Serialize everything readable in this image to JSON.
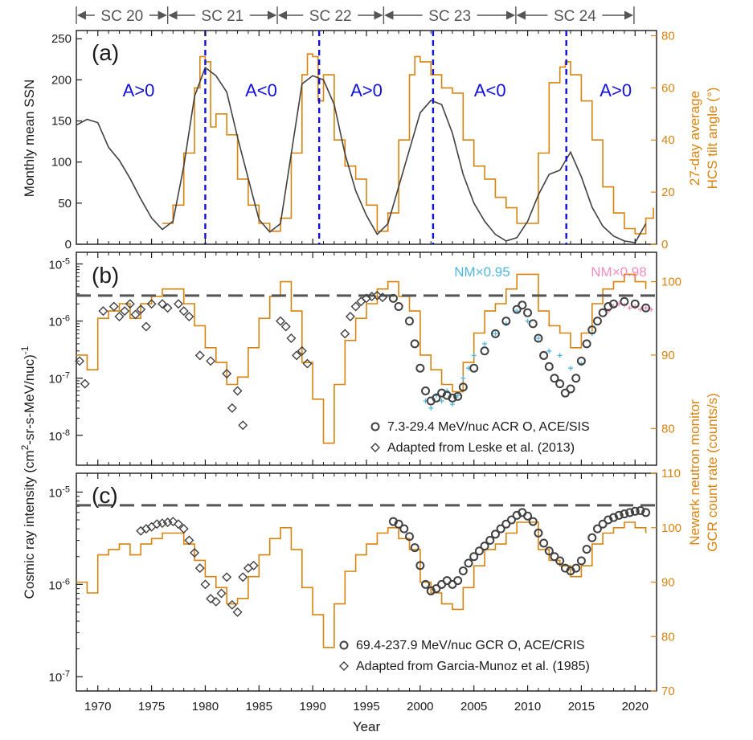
{
  "colors": {
    "axis": "#1a1a1a",
    "ssn": "#404040",
    "tilt": "#d9830f",
    "nm": "#d9830f",
    "polarity": "#1010d8",
    "dashed_ref": "#555555",
    "ace": "#404040",
    "nm_scaled_2000": "#4fb6e0",
    "nm_scaled_2017": "#f58cbf"
  },
  "header": {
    "cycles": [
      {
        "label": "SC 20",
        "start": 1968.0,
        "end": 1976.5
      },
      {
        "label": "SC 21",
        "start": 1976.5,
        "end": 1986.7
      },
      {
        "label": "SC 22",
        "start": 1986.7,
        "end": 1996.6
      },
      {
        "label": "SC 23",
        "start": 1996.6,
        "end": 2008.9
      },
      {
        "label": "SC 24",
        "start": 2008.9,
        "end": 2019.9
      }
    ]
  },
  "xaxis": {
    "label": "Year",
    "range": [
      1968,
      2022
    ],
    "ticks": [
      "1970",
      "1975",
      "1980",
      "1985",
      "1990",
      "1995",
      "2000",
      "2005",
      "2010",
      "2015",
      "2020"
    ]
  },
  "shared_labels": {
    "left": "Cosmic ray intensity (cm",
    "left_sup1": "2",
    "left_mid": "-sr-s-MeV/nuc)",
    "left_sup2": "-1",
    "right_line1": "Newark neutron monitor",
    "right_line2": "GCR count rate (counts/s)"
  },
  "chart_data": [
    {
      "panel": "(a)",
      "type": "line",
      "ylabel": "Monthly mean SSN",
      "ylim": [
        0,
        260
      ],
      "yticks": [
        "0",
        "50",
        "100",
        "150",
        "200",
        "250"
      ],
      "y2label_line1": "27-day average",
      "y2label_line2": "HCS tilt angle (°)",
      "y2lim": [
        0,
        82
      ],
      "y2ticks": [
        "0",
        "20",
        "40",
        "60",
        "80"
      ],
      "polarity_reversals": [
        1980.0,
        1990.6,
        2001.2,
        2013.6
      ],
      "polarity_labels": [
        {
          "text": "A>0",
          "x": 1973.8
        },
        {
          "text": "A<0",
          "x": 1985.2
        },
        {
          "text": "A>0",
          "x": 1995.0
        },
        {
          "text": "A<0",
          "x": 2006.5
        },
        {
          "text": "A>0",
          "x": 2018.2
        }
      ],
      "series": [
        {
          "role": "ssn",
          "x": [
            1968,
            1969,
            1970,
            1971,
            1972,
            1973,
            1974,
            1975,
            1976,
            1977,
            1978,
            1979,
            1980,
            1981,
            1982,
            1983,
            1984,
            1985,
            1986,
            1987,
            1988,
            1989,
            1990,
            1991,
            1992,
            1993,
            1994,
            1995,
            1996,
            1997,
            1998,
            1999,
            2000,
            2001,
            2002,
            2003,
            2004,
            2005,
            2006,
            2007,
            2008,
            2009,
            2010,
            2011,
            2012,
            2013,
            2014,
            2015,
            2016,
            2017,
            2018,
            2019,
            2020,
            2021
          ],
          "values": [
            145,
            152,
            148,
            118,
            102,
            80,
            55,
            32,
            18,
            28,
            95,
            180,
            215,
            205,
            185,
            130,
            80,
            30,
            15,
            25,
            110,
            195,
            205,
            200,
            170,
            110,
            65,
            35,
            12,
            25,
            70,
            115,
            160,
            175,
            170,
            135,
            85,
            50,
            28,
            12,
            4,
            8,
            28,
            60,
            85,
            90,
            112,
            82,
            45,
            22,
            10,
            4,
            2,
            25
          ]
        },
        {
          "role": "tilt",
          "x": [
            1976,
            1977,
            1978,
            1979,
            1979.5,
            1980,
            1980.5,
            1981,
            1982,
            1983,
            1984,
            1985,
            1986,
            1987,
            1988,
            1989,
            1989.5,
            1990,
            1990.5,
            1991,
            1992,
            1993,
            1994,
            1995,
            1996,
            1997,
            1998,
            1999,
            1999.5,
            2000,
            2001,
            2002,
            2003,
            2004,
            2005,
            2006,
            2007,
            2008,
            2009,
            2010,
            2011,
            2012,
            2013,
            2013.5,
            2014,
            2015,
            2016,
            2017,
            2018,
            2019,
            2020,
            2021,
            2021.7
          ],
          "values": [
            8,
            15,
            35,
            60,
            72,
            70,
            45,
            50,
            42,
            25,
            15,
            8,
            5,
            10,
            35,
            65,
            73,
            72,
            55,
            65,
            40,
            30,
            25,
            15,
            5,
            12,
            40,
            65,
            72,
            70,
            65,
            60,
            58,
            40,
            30,
            25,
            18,
            14,
            8,
            8,
            35,
            62,
            68,
            70,
            65,
            55,
            40,
            22,
            12,
            6,
            4,
            10,
            14
          ]
        }
      ]
    },
    {
      "panel": "(b)",
      "type": "line",
      "ylog": true,
      "ylim": [
        3e-09,
        1.6e-05
      ],
      "yticks": [
        {
          "base": "10",
          "exp": "-5",
          "value": 1e-05
        },
        {
          "base": "10",
          "exp": "-6",
          "value": 1e-06
        },
        {
          "base": "10",
          "exp": "-7",
          "value": 1e-07
        },
        {
          "base": "10",
          "exp": "-8",
          "value": 1e-08
        }
      ],
      "y2lim": [
        75,
        104
      ],
      "y2ticks": [
        "80",
        "90",
        "100"
      ],
      "reference_level": 2.8e-06,
      "labels": {
        "nm95": "NM×0.95",
        "nm98": "NM×0.98"
      },
      "legend": [
        {
          "marker": "circle",
          "label": "7.3-29.4 MeV/nuc ACR O, ACE/SIS"
        },
        {
          "marker": "diamond",
          "label": "Adapted from Leske et al. (2013)"
        }
      ],
      "series": [
        {
          "role": "nm",
          "x": [
            1968,
            1969,
            1970,
            1971,
            1972,
            1973,
            1974,
            1975,
            1976,
            1977,
            1978,
            1979,
            1980,
            1981,
            1982,
            1983,
            1984,
            1985,
            1986,
            1987,
            1988,
            1989,
            1990,
            1991,
            1992,
            1993,
            1994,
            1995,
            1996,
            1997,
            1998,
            1999,
            2000,
            2001,
            2002,
            2003,
            2004,
            2005,
            2006,
            2007,
            2008,
            2009,
            2010,
            2011,
            2012,
            2013,
            2014,
            2015,
            2016,
            2017,
            2018,
            2019,
            2020,
            2021
          ],
          "values": [
            90,
            88,
            95,
            96,
            97,
            95,
            97,
            98,
            99,
            99,
            97,
            94,
            91,
            89,
            86,
            87,
            91,
            95,
            98,
            100,
            96,
            89,
            84,
            78,
            86,
            92,
            95,
            97,
            99,
            100,
            98,
            96,
            90,
            88,
            86,
            85,
            89,
            93,
            96,
            97,
            99,
            101,
            101,
            96,
            94,
            93,
            91,
            93,
            97,
            99,
            100,
            101,
            100,
            99
          ]
        },
        {
          "role": "ace",
          "x": [
            1997.5,
            1998,
            1999,
            1999.5,
            2000,
            2000.5,
            2001,
            2001.5,
            2002,
            2002.5,
            2003,
            2003.5,
            2004,
            2005,
            2006,
            2007,
            2008,
            2009,
            2009.5,
            2010,
            2010.5,
            2011,
            2011.5,
            2012,
            2012.5,
            2013,
            2013.5,
            2014,
            2014.5,
            2015,
            2015.5,
            2016,
            2016.5,
            2017,
            2017.5,
            2018,
            2019,
            2020,
            2021
          ],
          "values": [
            2.5e-06,
            1.8e-06,
            1e-06,
            4e-07,
            1.5e-07,
            6e-08,
            4e-08,
            4.5e-08,
            5.5e-08,
            5e-08,
            4.5e-08,
            4.8e-08,
            7e-08,
            1.5e-07,
            3e-07,
            6e-07,
            1e-06,
            1.6e-06,
            1.9e-06,
            1.4e-06,
            9e-07,
            5e-07,
            2.5e-07,
            1.6e-07,
            1e-07,
            8e-08,
            5.5e-08,
            6.5e-08,
            1e-07,
            2e-07,
            4e-07,
            7e-07,
            1e-06,
            1.4e-06,
            1.8e-06,
            2e-06,
            2.2e-06,
            2e-06,
            1.7e-06
          ]
        },
        {
          "role": "leske",
          "x": [
            1968.3,
            1968.8,
            1970.5,
            1971.5,
            1972.0,
            1972.5,
            1973.0,
            1973.5,
            1974.0,
            1974.5,
            1975.0,
            1976.0,
            1976.5,
            1977.5,
            1978.0,
            1978.5,
            1979.5,
            1980.5,
            1982.0,
            1982.5,
            1983.0,
            1983.5,
            1987.0,
            1987.5,
            1988.0,
            1988.5,
            1989.0,
            1989.5,
            1993.0,
            1993.5,
            1994.0,
            1994.5,
            1995.0,
            1995.5,
            1996.0,
            1996.5
          ],
          "values": [
            2e-07,
            8e-08,
            1.5e-06,
            1.8e-06,
            1.2e-06,
            1.5e-06,
            2e-06,
            1.3e-06,
            1.6e-06,
            8e-07,
            2e-06,
            2e-06,
            1.7e-06,
            2e-06,
            1.5e-06,
            1.2e-06,
            2.5e-07,
            2e-07,
            1.2e-07,
            3e-08,
            6e-08,
            1.5e-08,
            1e-06,
            8e-07,
            5e-07,
            2.5e-07,
            3e-07,
            1.8e-07,
            6e-07,
            1.2e-06,
            1.8e-06,
            2.2e-06,
            2.5e-06,
            2.7e-06,
            2.8e-06,
            2.6e-06
          ]
        },
        {
          "role": "nm_scaled_2000",
          "x": [
            2000.5,
            2001,
            2001.5,
            2002,
            2002.5,
            2003,
            2003.5,
            2004,
            2004.5,
            2005,
            2006,
            2007,
            2008,
            2009,
            2010,
            2011,
            2012,
            2013,
            2014,
            2015,
            2016
          ],
          "values": [
            4e-08,
            3e-08,
            5e-08,
            4e-08,
            6e-08,
            3.5e-08,
            5e-08,
            1e-07,
            1.5e-07,
            2.5e-07,
            4e-07,
            6e-07,
            9e-07,
            1.5e-06,
            1e-06,
            5e-07,
            3e-07,
            2.5e-07,
            1.5e-07,
            1.8e-07,
            6e-07
          ]
        },
        {
          "role": "nm_scaled_2017",
          "x": [
            2017.5,
            2018,
            2018.5,
            2019,
            2019.5,
            2020,
            2020.5,
            2021,
            2021.5
          ],
          "values": [
            1.5e-06,
            1.8e-06,
            2e-06,
            1.9e-06,
            1.7e-06,
            1.8e-06,
            1.6e-06,
            1.7e-06,
            1.6e-06
          ]
        }
      ]
    },
    {
      "panel": "(c)",
      "type": "line",
      "ylog": true,
      "ylim": [
        7e-08,
        1.6e-05
      ],
      "yticks": [
        {
          "base": "10",
          "exp": "-5",
          "value": 1e-05
        },
        {
          "base": "10",
          "exp": "-6",
          "value": 1e-06
        },
        {
          "base": "10",
          "exp": "-7",
          "value": 1e-07
        }
      ],
      "y2lim": [
        70,
        110
      ],
      "y2ticks": [
        "70",
        "80",
        "90",
        "100",
        "110"
      ],
      "reference_level": 7.2e-06,
      "legend": [
        {
          "marker": "circle",
          "label": "69.4-237.9 MeV/nuc GCR O, ACE/CRIS"
        },
        {
          "marker": "diamond",
          "label": "Adapted from Garcia-Munoz et al. (1985)"
        }
      ],
      "series": [
        {
          "role": "nm",
          "x": [
            1968,
            1969,
            1970,
            1971,
            1972,
            1973,
            1974,
            1975,
            1976,
            1977,
            1978,
            1979,
            1980,
            1981,
            1982,
            1983,
            1984,
            1985,
            1986,
            1987,
            1988,
            1989,
            1990,
            1991,
            1992,
            1993,
            1994,
            1995,
            1996,
            1997,
            1998,
            1999,
            2000,
            2001,
            2002,
            2003,
            2004,
            2005,
            2006,
            2007,
            2008,
            2009,
            2010,
            2011,
            2012,
            2013,
            2014,
            2015,
            2016,
            2017,
            2018,
            2019,
            2020,
            2021
          ],
          "values": [
            90,
            88,
            95,
            96,
            97,
            95,
            97,
            98,
            99,
            99,
            97,
            94,
            91,
            89,
            86,
            87,
            91,
            95,
            98,
            100,
            96,
            89,
            84,
            78,
            86,
            92,
            95,
            97,
            99,
            100,
            98,
            96,
            90,
            88,
            86,
            85,
            89,
            93,
            96,
            97,
            99,
            101,
            101,
            96,
            94,
            93,
            91,
            93,
            97,
            99,
            100,
            101,
            100,
            99
          ]
        },
        {
          "role": "ace",
          "x": [
            1997.5,
            1998,
            1998.5,
            1999,
            1999.5,
            2000,
            2000.5,
            2001,
            2001.5,
            2002,
            2002.5,
            2003,
            2003.5,
            2004,
            2004.5,
            2005,
            2005.5,
            2006,
            2006.5,
            2007,
            2007.5,
            2008,
            2008.5,
            2009,
            2009.5,
            2010,
            2010.5,
            2011,
            2011.5,
            2012,
            2012.5,
            2013,
            2013.5,
            2014,
            2014.5,
            2015,
            2015.5,
            2016,
            2016.5,
            2017,
            2017.5,
            2018,
            2018.5,
            2019,
            2019.5,
            2020,
            2020.5,
            2021
          ],
          "values": [
            4.8e-06,
            4.5e-06,
            4e-06,
            3.3e-06,
            2.5e-06,
            1.6e-06,
            1e-06,
            8.5e-07,
            9e-07,
            1e-06,
            1.1e-06,
            1e-06,
            1.1e-06,
            1.4e-06,
            1.7e-06,
            2e-06,
            2.3e-06,
            2.6e-06,
            3e-06,
            3.5e-06,
            4e-06,
            4.5e-06,
            5e-06,
            5.6e-06,
            6e-06,
            5.5e-06,
            4.8e-06,
            3.6e-06,
            2.8e-06,
            2.3e-06,
            2e-06,
            1.8e-06,
            1.5e-06,
            1.4e-06,
            1.5e-06,
            1.8e-06,
            2.4e-06,
            3.2e-06,
            4e-06,
            4.5e-06,
            5e-06,
            5.3e-06,
            5.6e-06,
            5.8e-06,
            6e-06,
            6.2e-06,
            6.3e-06,
            6e-06
          ]
        },
        {
          "role": "garcia",
          "x": [
            1974.0,
            1974.5,
            1975.0,
            1975.5,
            1976.0,
            1976.5,
            1977.0,
            1977.5,
            1978.0,
            1978.5,
            1979.0,
            1979.5,
            1980.0,
            1980.5,
            1981.0,
            1981.5,
            1982.0,
            1982.5,
            1983.0,
            1983.5,
            1984.0,
            1984.5
          ],
          "values": [
            3.8e-06,
            4e-06,
            4.2e-06,
            4.5e-06,
            4.6e-06,
            4.7e-06,
            4.8e-06,
            4.5e-06,
            4e-06,
            3e-06,
            2.2e-06,
            1.5e-06,
            1e-06,
            7e-07,
            6.5e-07,
            8e-07,
            1.2e-06,
            6e-07,
            5e-07,
            1.2e-06,
            1.5e-06,
            1.6e-06
          ]
        }
      ]
    }
  ]
}
